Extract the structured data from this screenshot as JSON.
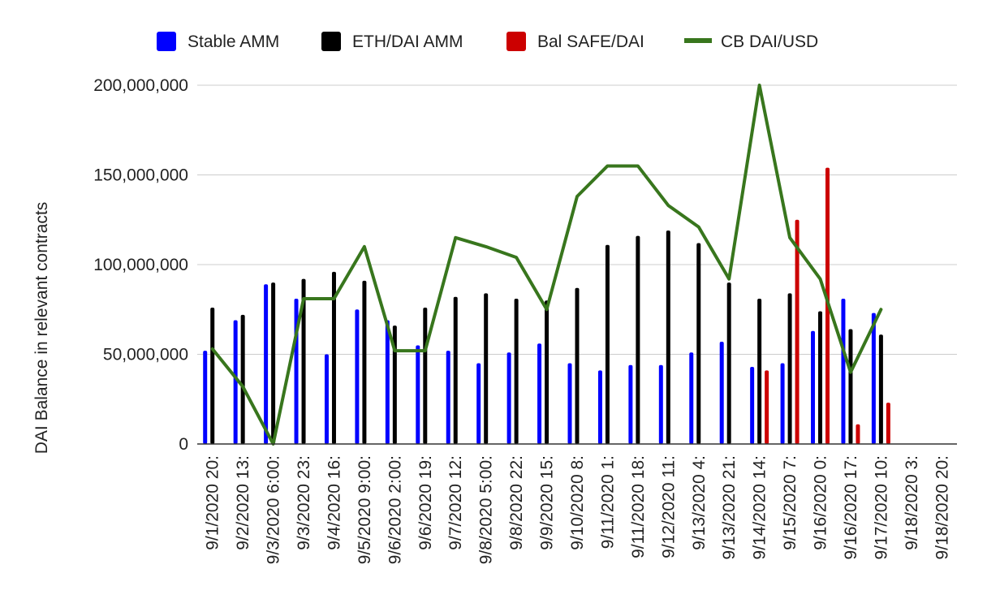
{
  "chart_data": {
    "type": "bar",
    "title": "",
    "xlabel": "",
    "ylabel": "DAI Balance in relevant contracts",
    "ylim": [
      0,
      200000000
    ],
    "yticks": [
      0,
      50000000,
      100000000,
      150000000,
      200000000
    ],
    "ytick_labels": [
      "0",
      "50,000,000",
      "100,000,000",
      "150,000,000",
      "200,000,000"
    ],
    "grid": true,
    "legend_position": "top",
    "categories": [
      "9/1/2020 20:",
      "9/2/2020 13:",
      "9/3/2020 6:00:",
      "9/3/2020 23:",
      "9/4/2020 16:",
      "9/5/2020 9:00:",
      "9/6/2020 2:00:",
      "9/6/2020 19:",
      "9/7/2020 12:",
      "9/8/2020 5:00:",
      "9/8/2020 22:",
      "9/9/2020 15:",
      "9/10/2020 8:",
      "9/11/2020 1:",
      "9/11/2020 18:",
      "9/12/2020 11:",
      "9/13/2020 4:",
      "9/13/2020 21:",
      "9/14/2020 14:",
      "9/15/2020 7:",
      "9/16/2020 0:",
      "9/16/2020 17:",
      "9/17/2020 10:",
      "9/18/2020 3:",
      "9/18/2020 20:"
    ],
    "series": [
      {
        "name": "Stable AMM",
        "type": "bar",
        "color": "#0000ff",
        "values": [
          52000000,
          69000000,
          89000000,
          81000000,
          50000000,
          75000000,
          69000000,
          55000000,
          52000000,
          45000000,
          51000000,
          56000000,
          45000000,
          41000000,
          44000000,
          44000000,
          51000000,
          57000000,
          43000000,
          45000000,
          63000000,
          81000000,
          73000000,
          null,
          null
        ]
      },
      {
        "name": "ETH/DAI AMM",
        "type": "bar",
        "color": "#000000",
        "values": [
          76000000,
          72000000,
          90000000,
          92000000,
          96000000,
          91000000,
          66000000,
          76000000,
          82000000,
          84000000,
          81000000,
          80000000,
          87000000,
          111000000,
          116000000,
          119000000,
          112000000,
          90000000,
          81000000,
          84000000,
          74000000,
          64000000,
          61000000,
          null,
          null
        ]
      },
      {
        "name": "Bal SAFE/DAI",
        "type": "bar",
        "color": "#cc0000",
        "values": [
          null,
          null,
          null,
          null,
          null,
          null,
          null,
          null,
          null,
          null,
          null,
          null,
          null,
          null,
          null,
          null,
          null,
          null,
          41000000,
          125000000,
          154000000,
          11000000,
          23000000,
          null,
          null
        ]
      },
      {
        "name": "CB DAI/USD",
        "type": "line",
        "color": "#38761d",
        "values": [
          53000000,
          32000000,
          0,
          81000000,
          81000000,
          110000000,
          52000000,
          52000000,
          115000000,
          110000000,
          104000000,
          75000000,
          138000000,
          155000000,
          155000000,
          133000000,
          121000000,
          92000000,
          200000000,
          115000000,
          92000000,
          40000000,
          75000000,
          null,
          null
        ]
      }
    ]
  }
}
